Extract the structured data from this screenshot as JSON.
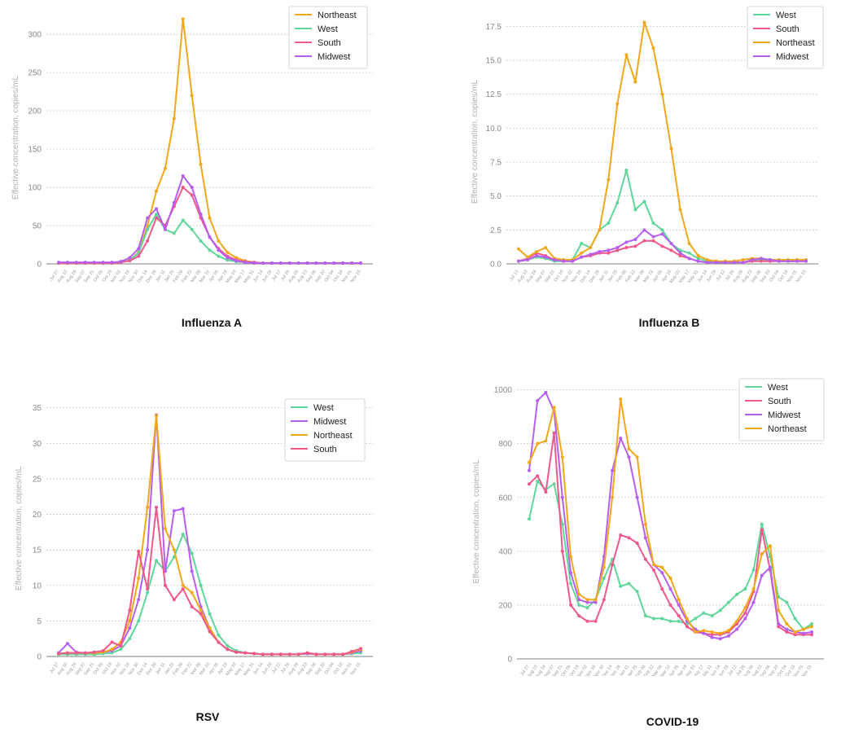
{
  "colors": {
    "Northeast": "#f0a81a",
    "West": "#5fd69a",
    "South": "#f0578b",
    "Midwest": "#b55ef0"
  },
  "chart_data": [
    {
      "type": "line",
      "title": "Influenza A",
      "ylabel": "Effective concentration, copies/mL",
      "ylim": [
        0,
        330
      ],
      "yticks": [
        0,
        50,
        100,
        150,
        200,
        250,
        300
      ],
      "x": [
        "Jul 27",
        "Aug 10",
        "Aug 24",
        "Sep 07",
        "Sep 21",
        "Oct 05",
        "Oct 19",
        "Nov 02",
        "Nov 16",
        "Nov 30",
        "Dec 14",
        "Dec 28",
        "Jan 11",
        "Jan 25",
        "Feb 08",
        "Feb 22",
        "Mar 08",
        "Mar 22",
        "Apr 05",
        "Apr 19",
        "May 03",
        "May 17",
        "May 31",
        "Jun 14",
        "Jun 28",
        "Jul 12",
        "Jul 26",
        "Aug 09",
        "Aug 23",
        "Sep 06",
        "Sep 20",
        "Oct 04",
        "Oct 18",
        "Nov 01",
        "Nov 15"
      ],
      "legend": [
        "Northeast",
        "West",
        "South",
        "Midwest"
      ],
      "series": [
        {
          "name": "Northeast",
          "values": [
            1,
            1,
            1,
            1,
            1,
            1,
            1,
            2,
            5,
            15,
            50,
            95,
            125,
            190,
            320,
            220,
            130,
            60,
            30,
            15,
            8,
            4,
            2,
            1,
            1,
            1,
            1,
            1,
            1,
            1,
            1,
            1,
            1,
            1,
            1
          ]
        },
        {
          "name": "West",
          "values": [
            1,
            1,
            1,
            1,
            1,
            1,
            1,
            2,
            5,
            14,
            45,
            65,
            45,
            40,
            57,
            45,
            30,
            18,
            10,
            5,
            3,
            2,
            1,
            1,
            1,
            1,
            1,
            1,
            1,
            1,
            1,
            1,
            1,
            1,
            1
          ]
        },
        {
          "name": "South",
          "values": [
            1,
            1,
            1,
            1,
            1,
            1,
            1,
            2,
            4,
            10,
            30,
            60,
            50,
            75,
            100,
            90,
            60,
            35,
            20,
            10,
            5,
            3,
            2,
            1,
            1,
            1,
            1,
            1,
            1,
            1,
            1,
            1,
            1,
            1,
            1
          ]
        },
        {
          "name": "Midwest",
          "values": [
            2,
            2,
            2,
            2,
            2,
            2,
            2,
            3,
            8,
            20,
            60,
            72,
            45,
            80,
            115,
            100,
            65,
            35,
            18,
            8,
            4,
            2,
            1,
            1,
            1,
            1,
            1,
            1,
            1,
            1,
            1,
            1,
            1,
            1,
            1
          ]
        }
      ]
    },
    {
      "type": "line",
      "title": "Influenza B",
      "ylabel": "Effective concentration, copies/mL",
      "ylim": [
        0,
        18
      ],
      "yticks": [
        0.0,
        2.5,
        5.0,
        7.5,
        10.0,
        12.5,
        15.0,
        17.5
      ],
      "x": [
        "Jul 13",
        "Aug 10",
        "Aug 24",
        "Sep 07",
        "Sep 21",
        "Oct 19",
        "Nov 02",
        "Nov 16",
        "Dec 14",
        "Dec 28",
        "Jan 11",
        "Jan 25",
        "Feb 08",
        "Feb 22",
        "Mar 08",
        "Mar 22",
        "Apr 05",
        "Apr 19",
        "May 03",
        "May 17",
        "May 31",
        "Jun 14",
        "Jun 28",
        "Jul 12",
        "Jul 26",
        "Aug 09",
        "Aug 23",
        "Sep 06",
        "Sep 20",
        "Oct 04",
        "Oct 18",
        "Nov 01",
        "Nov 15"
      ],
      "legend": [
        "West",
        "South",
        "Northeast",
        "Midwest"
      ],
      "series": [
        {
          "name": "West",
          "values": [
            0.2,
            0.3,
            0.5,
            0.4,
            0.2,
            0.2,
            0.3,
            1.5,
            1.2,
            2.5,
            3.0,
            4.5,
            6.9,
            4.0,
            4.6,
            3.0,
            2.5,
            1.5,
            1.0,
            0.8,
            0.4,
            0.2,
            0.1,
            0.1,
            0.1,
            0.1,
            0.2,
            0.3,
            0.3,
            0.2,
            0.2,
            0.2,
            0.2
          ]
        },
        {
          "name": "South",
          "values": [
            0.2,
            0.4,
            0.8,
            0.6,
            0.3,
            0.2,
            0.2,
            0.5,
            0.6,
            0.8,
            0.8,
            1.0,
            1.2,
            1.3,
            1.7,
            1.7,
            1.3,
            1.0,
            0.6,
            0.4,
            0.2,
            0.1,
            0.1,
            0.1,
            0.1,
            0.1,
            0.2,
            0.2,
            0.2,
            0.2,
            0.2,
            0.2,
            0.2
          ]
        },
        {
          "name": "Northeast",
          "values": [
            1.1,
            0.5,
            0.9,
            1.2,
            0.4,
            0.3,
            0.3,
            0.8,
            1.2,
            2.5,
            6.2,
            11.8,
            15.4,
            13.4,
            17.8,
            15.9,
            12.5,
            8.5,
            4.0,
            1.5,
            0.6,
            0.3,
            0.2,
            0.2,
            0.2,
            0.3,
            0.4,
            0.4,
            0.3,
            0.3,
            0.3,
            0.3,
            0.3
          ]
        },
        {
          "name": "Midwest",
          "values": [
            0.2,
            0.3,
            0.6,
            0.5,
            0.3,
            0.2,
            0.2,
            0.5,
            0.7,
            0.9,
            1.0,
            1.2,
            1.6,
            1.8,
            2.5,
            2.0,
            2.2,
            1.5,
            0.8,
            0.4,
            0.2,
            0.1,
            0.1,
            0.1,
            0.1,
            0.1,
            0.3,
            0.4,
            0.3,
            0.2,
            0.2,
            0.2,
            0.2
          ]
        }
      ]
    },
    {
      "type": "line",
      "title": "RSV",
      "ylabel": "Effective concentration, copies/mL",
      "ylim": [
        0,
        36
      ],
      "yticks": [
        0,
        5,
        10,
        15,
        20,
        25,
        30,
        35
      ],
      "x": [
        "Jul 27",
        "Aug 10",
        "Aug 24",
        "Sep 07",
        "Sep 21",
        "Oct 05",
        "Oct 19",
        "Nov 02",
        "Nov 16",
        "Nov 30",
        "Dec 14",
        "Dec 28",
        "Jan 11",
        "Jan 25",
        "Feb 08",
        "Feb 22",
        "Mar 08",
        "Mar 22",
        "Apr 05",
        "Apr 19",
        "May 03",
        "May 17",
        "May 31",
        "Jun 14",
        "Jun 28",
        "Jul 12",
        "Jul 26",
        "Aug 09",
        "Aug 23",
        "Sep 06",
        "Sep 20",
        "Oct 04",
        "Oct 18",
        "Nov 01",
        "Nov 15"
      ],
      "legend": [
        "West",
        "Midwest",
        "Northeast",
        "South"
      ],
      "series": [
        {
          "name": "West",
          "values": [
            0.3,
            0.3,
            0.3,
            0.3,
            0.3,
            0.4,
            0.5,
            1.0,
            2.5,
            5.0,
            9.0,
            13.5,
            12.0,
            14.0,
            17.2,
            14.5,
            10.0,
            6.0,
            3.0,
            1.5,
            0.8,
            0.5,
            0.4,
            0.3,
            0.3,
            0.3,
            0.3,
            0.3,
            0.4,
            0.3,
            0.3,
            0.3,
            0.3,
            0.4,
            0.5
          ]
        },
        {
          "name": "Midwest",
          "values": [
            0.5,
            1.8,
            0.6,
            0.5,
            0.5,
            0.6,
            0.8,
            1.5,
            4.0,
            8.0,
            15.0,
            34.0,
            12.0,
            20.5,
            20.8,
            12.0,
            7.0,
            4.0,
            2.0,
            1.0,
            0.6,
            0.5,
            0.4,
            0.3,
            0.3,
            0.3,
            0.3,
            0.3,
            0.4,
            0.3,
            0.3,
            0.3,
            0.3,
            0.5,
            0.8
          ]
        },
        {
          "name": "Northeast",
          "values": [
            0.4,
            0.5,
            0.5,
            0.5,
            0.5,
            0.6,
            1.0,
            2.0,
            5.0,
            11.0,
            21.0,
            33.9,
            18.0,
            15.0,
            10.0,
            9.0,
            6.5,
            4.0,
            2.0,
            1.0,
            0.6,
            0.5,
            0.4,
            0.3,
            0.3,
            0.3,
            0.3,
            0.3,
            0.5,
            0.3,
            0.3,
            0.3,
            0.3,
            0.6,
            1.0
          ]
        },
        {
          "name": "South",
          "values": [
            0.4,
            0.5,
            0.5,
            0.5,
            0.6,
            0.8,
            2.0,
            1.5,
            6.5,
            14.8,
            9.5,
            21.0,
            10.0,
            8.0,
            9.5,
            7.0,
            6.0,
            3.5,
            2.0,
            1.0,
            0.6,
            0.5,
            0.4,
            0.3,
            0.3,
            0.3,
            0.3,
            0.3,
            0.5,
            0.3,
            0.3,
            0.3,
            0.3,
            0.7,
            1.1
          ]
        }
      ]
    },
    {
      "type": "line",
      "title": "COVID-19",
      "ylabel": "Effective concentration, copies/mL",
      "ylim": [
        0,
        1020
      ],
      "yticks": [
        0,
        200,
        400,
        600,
        800,
        1000
      ],
      "x": [
        "Jul 27",
        "Aug 10",
        "Aug 24",
        "Sep 07",
        "Sep 21",
        "Oct 05",
        "Oct 19",
        "Nov 02",
        "Nov 16",
        "Nov 30",
        "Dec 14",
        "Dec 28",
        "Jan 11",
        "Jan 25",
        "Feb 08",
        "Feb 22",
        "Mar 08",
        "Mar 22",
        "Apr 05",
        "Apr 19",
        "May 03",
        "May 17",
        "May 31",
        "Jun 14",
        "Jun 28",
        "Jul 12",
        "Jul 26",
        "Aug 09",
        "Aug 23",
        "Sep 06",
        "Sep 20",
        "Oct 04",
        "Oct 18",
        "Nov 01",
        "Nov 15"
      ],
      "legend": [
        "West",
        "South",
        "Midwest",
        "Northeast"
      ],
      "series": [
        {
          "name": "West",
          "values": [
            520,
            660,
            630,
            650,
            500,
            280,
            200,
            190,
            220,
            300,
            370,
            270,
            280,
            250,
            160,
            150,
            150,
            140,
            140,
            130,
            150,
            170,
            160,
            180,
            210,
            240,
            260,
            330,
            500,
            380,
            230,
            210,
            150,
            110,
            130
          ]
        },
        {
          "name": "South",
          "values": [
            650,
            680,
            620,
            840,
            400,
            200,
            160,
            140,
            140,
            220,
            350,
            460,
            450,
            430,
            370,
            330,
            260,
            200,
            160,
            120,
            100,
            95,
            90,
            90,
            100,
            130,
            170,
            250,
            480,
            330,
            120,
            100,
            90,
            90,
            90
          ]
        },
        {
          "name": "Midwest",
          "values": [
            700,
            960,
            990,
            920,
            600,
            320,
            220,
            210,
            210,
            380,
            700,
            820,
            750,
            600,
            450,
            350,
            320,
            260,
            200,
            140,
            110,
            95,
            80,
            75,
            85,
            110,
            150,
            210,
            310,
            340,
            130,
            110,
            100,
            95,
            100
          ]
        },
        {
          "name": "Northeast",
          "values": [
            730,
            800,
            810,
            935,
            750,
            380,
            240,
            220,
            220,
            340,
            600,
            965,
            780,
            750,
            500,
            350,
            340,
            300,
            220,
            150,
            100,
            105,
            100,
            95,
            105,
            140,
            190,
            260,
            390,
            420,
            180,
            130,
            100,
            110,
            120
          ]
        }
      ]
    }
  ]
}
